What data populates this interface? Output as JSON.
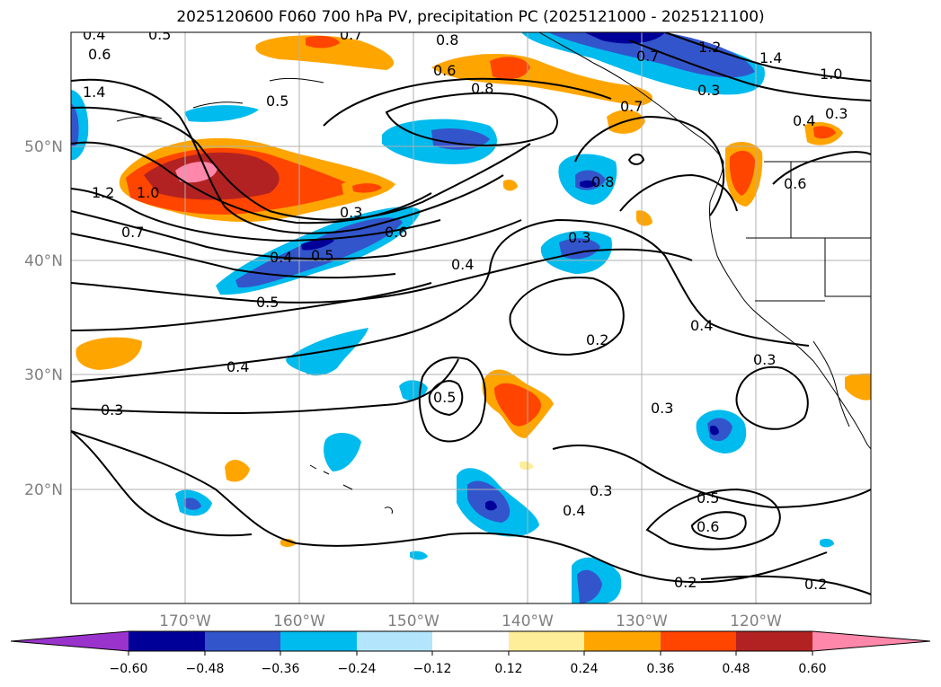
{
  "title": "2025120600 F060 700 hPa PV, precipitation PC (2025121000 - 2025121100)",
  "lon_ticks": [
    "170°W",
    "160°W",
    "150°W",
    "140°W",
    "130°W",
    "120°W"
  ],
  "lat_ticks": [
    "50°N",
    "40°N",
    "30°N",
    "20°N"
  ],
  "colorbar": {
    "ticks": [
      "−0.60",
      "−0.48",
      "−0.36",
      "−0.24",
      "−0.12",
      "0.12",
      "0.24",
      "0.36",
      "0.48",
      "0.60"
    ],
    "levels": [
      -0.6,
      -0.48,
      -0.36,
      -0.24,
      -0.12,
      0.12,
      0.24,
      0.36,
      0.48,
      0.6
    ],
    "colors": {
      "under": "#9933cc",
      "bins": [
        "#000099",
        "#3355cc",
        "#00bbee",
        "#b3e5fc",
        "#ffffff",
        "#ffee99",
        "#ffa500",
        "#ff4500",
        "#b22222",
        "#ff88aa"
      ]
    }
  },
  "pv_contour_labels": [
    "0.4",
    "0.5",
    "0.7",
    "0.6",
    "0.8",
    "0.6",
    "1.4",
    "0.5",
    "0.8",
    "0.7",
    "0.7",
    "1.2",
    "1.4",
    "1.0",
    "0.3",
    "0.3",
    "0.4",
    "0.6",
    "1.2",
    "1.0",
    "0.7",
    "0.3",
    "0.6",
    "0.5",
    "0.4",
    "0.8",
    "0.3",
    "0.4",
    "0.5",
    "0.2",
    "0.4",
    "0.3",
    "0.4",
    "0.5",
    "0.3",
    "0.3",
    "0.3",
    "0.5",
    "0.6",
    "0.4",
    "0.2",
    "0.2"
  ]
}
